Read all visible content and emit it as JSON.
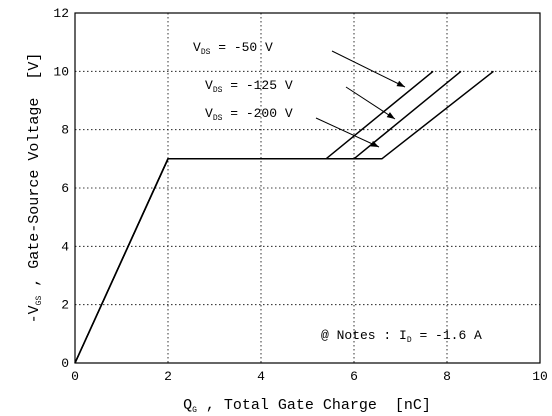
{
  "chart_data": {
    "type": "line",
    "x_axis": {
      "label": "Q",
      "label_sub": "G",
      "label_rest": " , Total Gate Charge  [nC]",
      "range": [
        0,
        10
      ],
      "ticks": [
        "0",
        "2",
        "4",
        "6",
        "8",
        "10"
      ]
    },
    "y_axis": {
      "label_pre": "-V",
      "label_sub": "GS",
      "label_rest": " , Gate-Source Voltage  [V]",
      "range": [
        0,
        12
      ],
      "ticks": [
        "0",
        "2",
        "4",
        "6",
        "8",
        "10",
        "12"
      ]
    },
    "grid": true,
    "series": [
      {
        "name_pre": "V",
        "name_sub": "DS",
        "name_rest": " = -50 V",
        "x": [
          0,
          2,
          5.4,
          7.7
        ],
        "y": [
          0,
          7,
          7,
          10
        ]
      },
      {
        "name_pre": "V",
        "name_sub": "DS",
        "name_rest": " = -125 V",
        "x": [
          0,
          2,
          6.0,
          8.3
        ],
        "y": [
          0,
          7,
          7,
          10
        ]
      },
      {
        "name_pre": "V",
        "name_sub": "DS",
        "name_rest": " = -200 V",
        "x": [
          0,
          2,
          6.6,
          9.0
        ],
        "y": [
          0,
          7,
          7,
          10
        ]
      }
    ],
    "annotation": {
      "pre": "@ Notes : I",
      "sub": "D",
      "rest": " = -1.6 A"
    }
  }
}
